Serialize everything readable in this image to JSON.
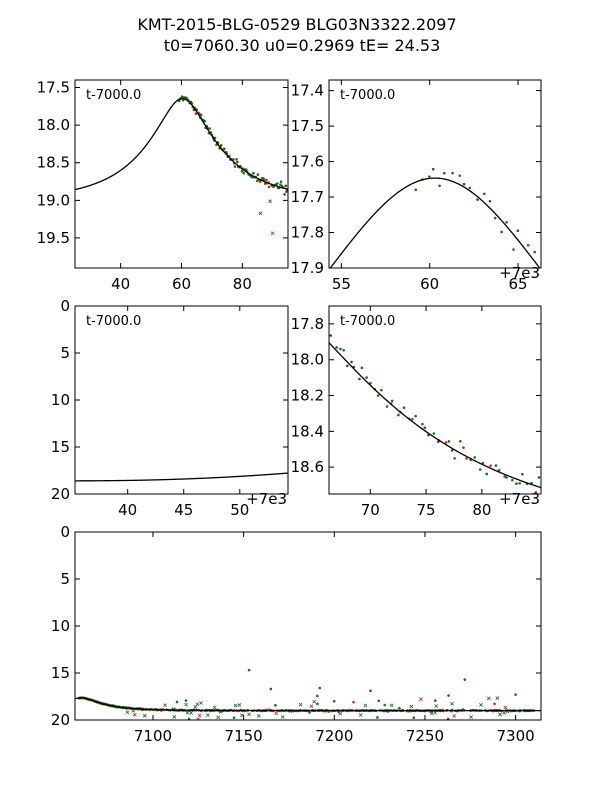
{
  "figure": {
    "title_line1": "KMT-2015-BLG-0529 BLG03N3322.2097",
    "title_line2": "t0=7060.30 u0=0.2969 tE=  24.53"
  },
  "chart_data": [
    {
      "id": "p1",
      "type": "scatter",
      "ylabel_inverted": true,
      "annotation": "t-7000.0",
      "offset_text": "+7e3",
      "xlim": [
        25,
        95
      ],
      "ylim": [
        17.4,
        19.9
      ],
      "xticks": [
        40,
        60,
        80
      ],
      "xtick_labels": [
        "40",
        "60",
        "80"
      ],
      "yticks": [
        17.5,
        18.0,
        18.5,
        19.0,
        19.5
      ],
      "ytick_labels": [
        "17.5",
        "18.0",
        "18.5",
        "19.0",
        "19.5"
      ],
      "show_offset": false,
      "model": true
    },
    {
      "id": "p2",
      "type": "scatter",
      "ylabel_inverted": true,
      "annotation": "t-7000.0",
      "offset_text": "+7e3",
      "xlim": [
        54.3,
        66.3
      ],
      "ylim": [
        17.37,
        17.9
      ],
      "xticks": [
        55,
        60,
        65
      ],
      "xtick_labels": [
        "55",
        "60",
        "65"
      ],
      "yticks": [
        17.4,
        17.5,
        17.6,
        17.7,
        17.8,
        17.9
      ],
      "ytick_labels": [
        "17.4",
        "17.5",
        "17.6",
        "17.7",
        "17.8",
        "17.9"
      ],
      "show_offset": true,
      "model": true
    },
    {
      "id": "p3",
      "type": "line",
      "ylabel_inverted": true,
      "annotation": "t-7000.0",
      "offset_text": "+7e3",
      "xlim": [
        35.3,
        54.3
      ],
      "ylim": [
        0,
        20
      ],
      "xticks": [
        40,
        45,
        50
      ],
      "xtick_labels": [
        "40",
        "45",
        "50"
      ],
      "yticks": [
        0,
        5,
        10,
        15,
        20
      ],
      "ytick_labels": [
        "0",
        "5",
        "10",
        "15",
        "20"
      ],
      "show_offset": true,
      "model": true
    },
    {
      "id": "p4",
      "type": "scatter",
      "ylabel_inverted": true,
      "annotation": "t-7000.0",
      "offset_text": "+7e3",
      "xlim": [
        66.3,
        85.3
      ],
      "ylim": [
        17.7,
        18.75
      ],
      "xticks": [
        70,
        75,
        80
      ],
      "xtick_labels": [
        "70",
        "75",
        "80"
      ],
      "yticks": [
        17.8,
        18.0,
        18.2,
        18.4,
        18.6
      ],
      "ytick_labels": [
        "17.8",
        "18.0",
        "18.2",
        "18.4",
        "18.6"
      ],
      "show_offset": true,
      "model": true
    },
    {
      "id": "p5",
      "type": "scatter",
      "ylabel_inverted": true,
      "xlim": [
        7057,
        7314
      ],
      "ylim": [
        0,
        20
      ],
      "xticks": [
        7100,
        7150,
        7200,
        7250,
        7300
      ],
      "xtick_labels": [
        "7100",
        "7150",
        "7200",
        "7250",
        "7300"
      ],
      "yticks": [
        0,
        5,
        10,
        15,
        20
      ],
      "ytick_labels": [
        "0",
        "5",
        "10",
        "15",
        "20"
      ],
      "model": true
    }
  ],
  "model_params": {
    "t0": 7060.3,
    "u0": 0.2969,
    "tE": 24.53,
    "baseline_mag": 19.0
  },
  "colors": {
    "series_green": "#1a6b1a",
    "series_red": "#d62020",
    "model": "#000000"
  }
}
